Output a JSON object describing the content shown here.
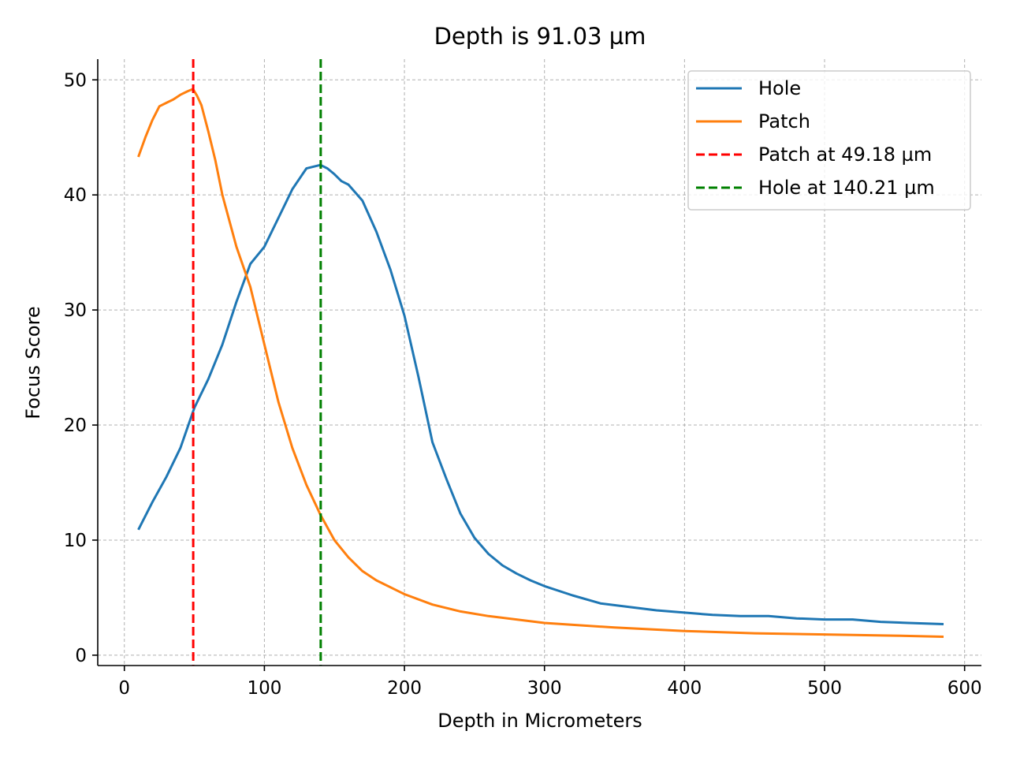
{
  "chart_data": {
    "type": "line",
    "title": "Depth is 91.03 µm",
    "xlabel": "Depth in Micrometers",
    "ylabel": "Focus Score",
    "xlim": [
      -19,
      612
    ],
    "ylim": [
      -0.9,
      51.8
    ],
    "xticks": [
      0,
      100,
      200,
      300,
      400,
      500,
      600
    ],
    "yticks": [
      0,
      10,
      20,
      30,
      40,
      50
    ],
    "grid": true,
    "legend_position": "top-right",
    "series": [
      {
        "name": "Hole",
        "color": "#1f77b4",
        "style": "solid",
        "x": [
          10,
          20,
          30,
          40,
          50,
          60,
          70,
          80,
          90,
          100,
          110,
          120,
          130,
          140,
          145,
          150,
          155,
          160,
          170,
          180,
          190,
          200,
          210,
          220,
          230,
          240,
          250,
          260,
          270,
          280,
          290,
          300,
          320,
          340,
          360,
          380,
          400,
          420,
          440,
          460,
          480,
          500,
          520,
          540,
          560,
          585
        ],
        "y": [
          10.9,
          13.3,
          15.5,
          18.0,
          21.5,
          24.0,
          27.0,
          30.7,
          34.0,
          35.5,
          38.0,
          40.5,
          42.3,
          42.6,
          42.3,
          41.8,
          41.2,
          40.9,
          39.5,
          36.8,
          33.5,
          29.5,
          24.2,
          18.5,
          15.3,
          12.3,
          10.2,
          8.8,
          7.8,
          7.1,
          6.5,
          6.0,
          5.2,
          4.5,
          4.2,
          3.9,
          3.7,
          3.5,
          3.4,
          3.4,
          3.2,
          3.1,
          3.1,
          2.9,
          2.8,
          2.7
        ]
      },
      {
        "name": "Patch",
        "color": "#ff7f0e",
        "style": "solid",
        "x": [
          10,
          15,
          20,
          25,
          30,
          35,
          40,
          45,
          49,
          52,
          55,
          60,
          65,
          70,
          80,
          90,
          100,
          110,
          120,
          130,
          140,
          150,
          160,
          170,
          180,
          200,
          220,
          240,
          260,
          300,
          350,
          400,
          450,
          500,
          550,
          585
        ],
        "y": [
          43.3,
          45.0,
          46.5,
          47.7,
          48.0,
          48.3,
          48.7,
          49.0,
          49.2,
          48.6,
          47.8,
          45.5,
          43.0,
          40.0,
          35.5,
          32.0,
          27.0,
          22.0,
          18.0,
          14.8,
          12.2,
          10.0,
          8.5,
          7.3,
          6.5,
          5.3,
          4.4,
          3.8,
          3.4,
          2.8,
          2.4,
          2.1,
          1.9,
          1.8,
          1.7,
          1.6
        ]
      }
    ],
    "vlines": [
      {
        "name": "Patch at 49.18 µm",
        "x": 49.18,
        "color": "#ff0000",
        "style": "dashed"
      },
      {
        "name": "Hole at 140.21 µm",
        "x": 140.21,
        "color": "#008000",
        "style": "dashed"
      }
    ]
  }
}
